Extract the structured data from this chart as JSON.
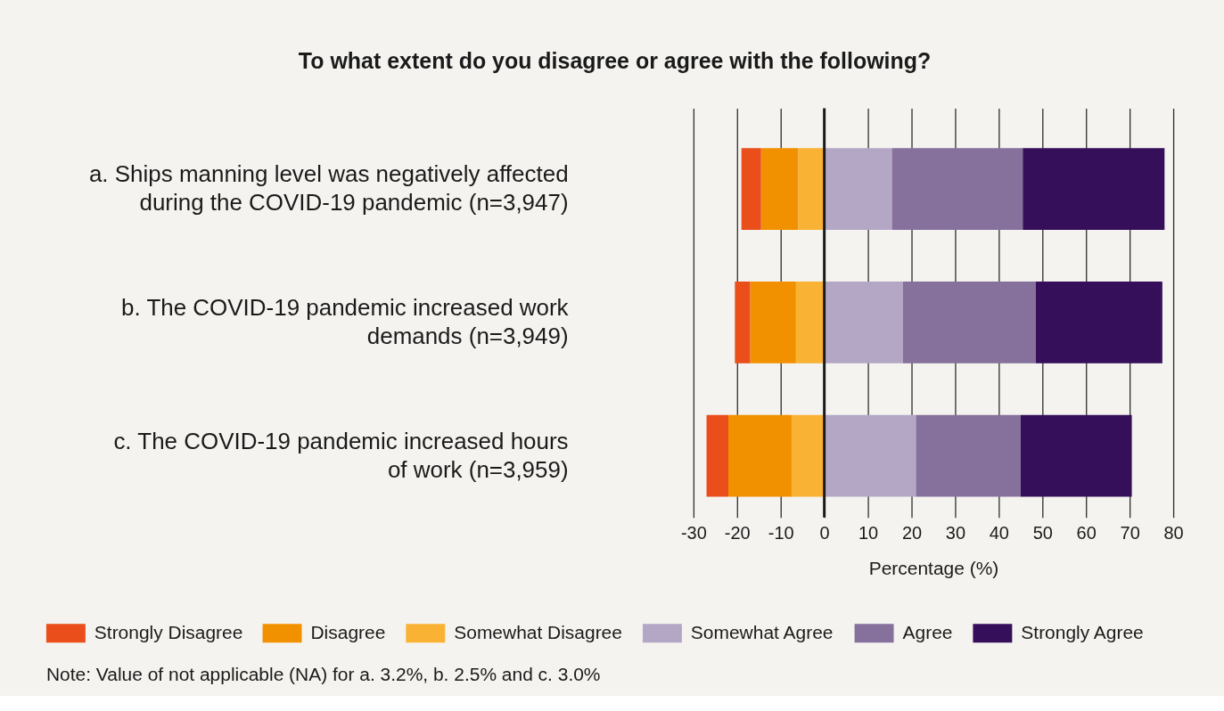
{
  "chart_data": {
    "type": "bar",
    "orientation": "horizontal",
    "stacked": true,
    "title": "To what extent do you disagree or agree with the following?",
    "xlabel": "Percentage (%)",
    "categories": [
      "a. Ships manning level was negatively affected during the COVID-19 pandemic (n=3,947)",
      "b. The COVID-19 pandemic increased work demands (n=3,949)",
      "c. The COVID-19 pandemic increased hours of work (n=3,959)"
    ],
    "series": [
      {
        "name": "Somewhat Disagree",
        "color": "#f9b233",
        "values": [
          -6,
          -6.5,
          -7.5
        ]
      },
      {
        "name": "Disagree",
        "color": "#f29100",
        "values": [
          -8.5,
          -10.5,
          -14.5
        ]
      },
      {
        "name": "Strongly Disagree",
        "color": "#e94e1b",
        "values": [
          -4.5,
          -3.5,
          -5
        ]
      },
      {
        "name": "Somewhat Agree",
        "color": "#b4a7c6",
        "values": [
          15.5,
          18,
          21
        ]
      },
      {
        "name": "Agree",
        "color": "#86709c",
        "values": [
          30,
          30.5,
          24
        ]
      },
      {
        "name": "Strongly Agree",
        "color": "#360f5b",
        "values": [
          32.5,
          29,
          25.5
        ]
      }
    ],
    "xlim": [
      -30,
      80
    ],
    "xticks": [
      -30,
      -20,
      -10,
      0,
      10,
      20,
      30,
      40,
      50,
      60,
      70,
      80
    ],
    "grid": "x",
    "legend": "bottom",
    "ref_lines": [
      {
        "axis": "x",
        "value": 0
      }
    ],
    "annotations": [
      "Note: Value of not applicable (NA) for a. 3.2%, b. 2.5% and c. 3.0%"
    ]
  }
}
